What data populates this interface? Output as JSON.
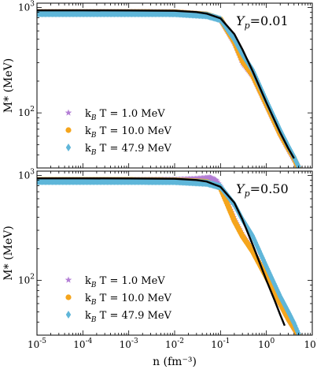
{
  "chart_data": [
    {
      "type": "line",
      "panel_label": "Y_p=0.01",
      "panel_label_parts": {
        "symbol": "Y",
        "subscript": "p",
        "value": "=0.01"
      },
      "xlabel": "n (fm⁻³)",
      "ylabel": "M* (MeV)",
      "xscale": "log",
      "yscale": "log",
      "xlim": [
        1e-05,
        10
      ],
      "ylim": [
        30,
        1100
      ],
      "x_ticks": [
        1e-05,
        0.0001,
        0.001,
        0.01,
        0.1,
        1,
        10
      ],
      "x_tick_labels": [],
      "y_ticks": [
        100,
        1000
      ],
      "y_tick_labels": [
        "10^2",
        "10^3"
      ],
      "legend": {
        "placement": "lower-left"
      },
      "series": [
        {
          "name": "k_B T = 1.0 MeV",
          "marker": "star",
          "color": "#b47fd6",
          "x": [
            1e-05,
            0.0001,
            0.001,
            0.01,
            0.05,
            0.1,
            0.2,
            0.3,
            0.5,
            1.0,
            2.0,
            3.0,
            4.0,
            5.0
          ],
          "y": [
            903,
            903,
            903,
            900,
            855,
            770,
            460,
            300,
            225,
            118,
            62,
            45,
            36,
            30
          ]
        },
        {
          "name": "k_B T = 10.0 MeV",
          "marker": "circle",
          "color": "#f5a51c",
          "x": [
            1e-05,
            0.0001,
            0.001,
            0.01,
            0.05,
            0.1,
            0.2,
            0.3,
            0.5,
            1.0,
            2.0,
            3.0,
            4.0,
            5.0
          ],
          "y": [
            905,
            905,
            905,
            902,
            860,
            775,
            470,
            310,
            228,
            120,
            63,
            46,
            37,
            30
          ]
        },
        {
          "name": "k_B T = 47.9 MeV",
          "marker": "diamond",
          "color": "#5fb6d9",
          "x": [
            1e-05,
            0.0001,
            0.001,
            0.01,
            0.05,
            0.1,
            0.2,
            0.3,
            0.5,
            1.0,
            2.0,
            3.0,
            4.0,
            5.0
          ],
          "y": [
            880,
            880,
            880,
            878,
            840,
            770,
            500,
            360,
            255,
            130,
            68,
            48,
            38,
            31
          ]
        },
        {
          "name": "",
          "marker": "line",
          "color": "#000000",
          "x": [
            1e-05,
            0.0001,
            0.001,
            0.01,
            0.03,
            0.05,
            0.1,
            0.2,
            0.3,
            0.5,
            1.0,
            2.0,
            3.0,
            4.0
          ],
          "y": [
            938,
            938,
            937,
            930,
            905,
            875,
            790,
            560,
            400,
            250,
            125,
            65,
            46,
            37
          ]
        }
      ]
    },
    {
      "type": "line",
      "panel_label": "Y_p=0.50",
      "panel_label_parts": {
        "symbol": "Y",
        "subscript": "p",
        "value": "=0.50"
      },
      "xlabel": "n (fm⁻³)",
      "ylabel": "M* (MeV)",
      "xscale": "log",
      "yscale": "log",
      "xlim": [
        1e-05,
        10
      ],
      "ylim": [
        30,
        1100
      ],
      "x_ticks": [
        1e-05,
        0.0001,
        0.001,
        0.01,
        0.1,
        1,
        10
      ],
      "x_tick_labels": [
        "10^-5",
        "10^-4",
        "10^-3",
        "10^-2",
        "10^-1",
        "10^0",
        "10^1"
      ],
      "y_ticks": [
        100,
        1000
      ],
      "y_tick_labels": [
        "10^2",
        "10^3"
      ],
      "legend": {
        "placement": "lower-left"
      },
      "series": [
        {
          "name": "k_B T = 1.0 MeV",
          "marker": "star",
          "color": "#b47fd6",
          "x": [
            1e-05,
            0.0001,
            0.001,
            0.01,
            0.03,
            0.05,
            0.06,
            0.08,
            0.1,
            0.15,
            0.2,
            0.3,
            0.5,
            1.0,
            2.0,
            3.0,
            4.0,
            5.0
          ],
          "y": [
            900,
            900,
            900,
            905,
            925,
            945,
            950,
            900,
            780,
            520,
            380,
            270,
            195,
            110,
            60,
            43,
            35,
            30
          ]
        },
        {
          "name": "k_B T = 10.0 MeV",
          "marker": "circle",
          "color": "#f5a51c",
          "x": [
            1e-05,
            0.0001,
            0.001,
            0.01,
            0.05,
            0.1,
            0.15,
            0.2,
            0.3,
            0.5,
            1.0,
            2.0,
            3.0,
            4.0,
            5.0
          ],
          "y": [
            905,
            905,
            905,
            902,
            870,
            760,
            500,
            370,
            265,
            190,
            108,
            60,
            43,
            35,
            30
          ]
        },
        {
          "name": "k_B T = 47.9 MeV",
          "marker": "diamond",
          "color": "#5fb6d9",
          "x": [
            1e-05,
            0.0001,
            0.001,
            0.01,
            0.05,
            0.1,
            0.2,
            0.3,
            0.5,
            1.0,
            2.0,
            3.0,
            4.0,
            5.0
          ],
          "y": [
            880,
            880,
            880,
            878,
            845,
            780,
            530,
            380,
            265,
            135,
            70,
            50,
            39,
            31
          ]
        },
        {
          "name": "",
          "marker": "line",
          "color": "#000000",
          "x": [
            1e-05,
            0.0001,
            0.001,
            0.01,
            0.03,
            0.05,
            0.1,
            0.2,
            0.3,
            0.5,
            1.0,
            1.5,
            2.0,
            2.5
          ],
          "y": [
            938,
            938,
            937,
            930,
            905,
            875,
            780,
            550,
            380,
            220,
            100,
            65,
            47,
            37
          ]
        }
      ]
    }
  ]
}
